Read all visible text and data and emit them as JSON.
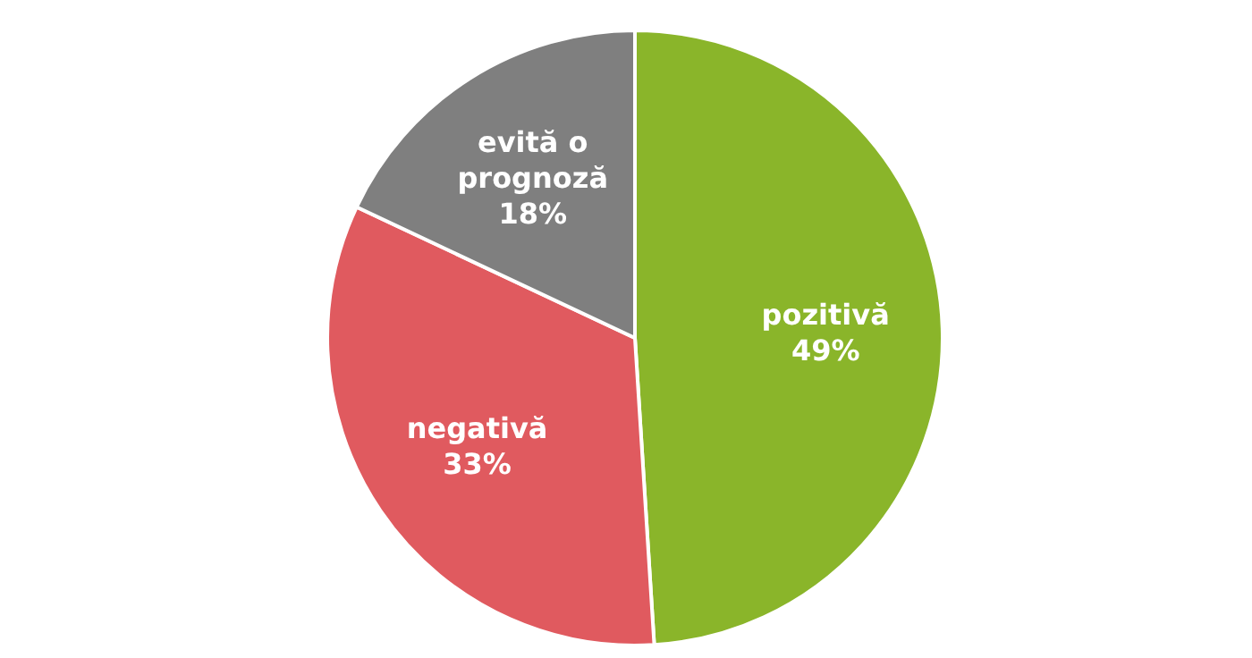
{
  "chart_data": {
    "type": "pie",
    "categories": [
      "pozitivă",
      "negativă",
      "evită o prognoză"
    ],
    "values": [
      49,
      33,
      18
    ],
    "colors": [
      "#8ab52a",
      "#e05a5f",
      "#7f7f7f"
    ],
    "value_labels": [
      "49%",
      "33%",
      "18%"
    ]
  }
}
